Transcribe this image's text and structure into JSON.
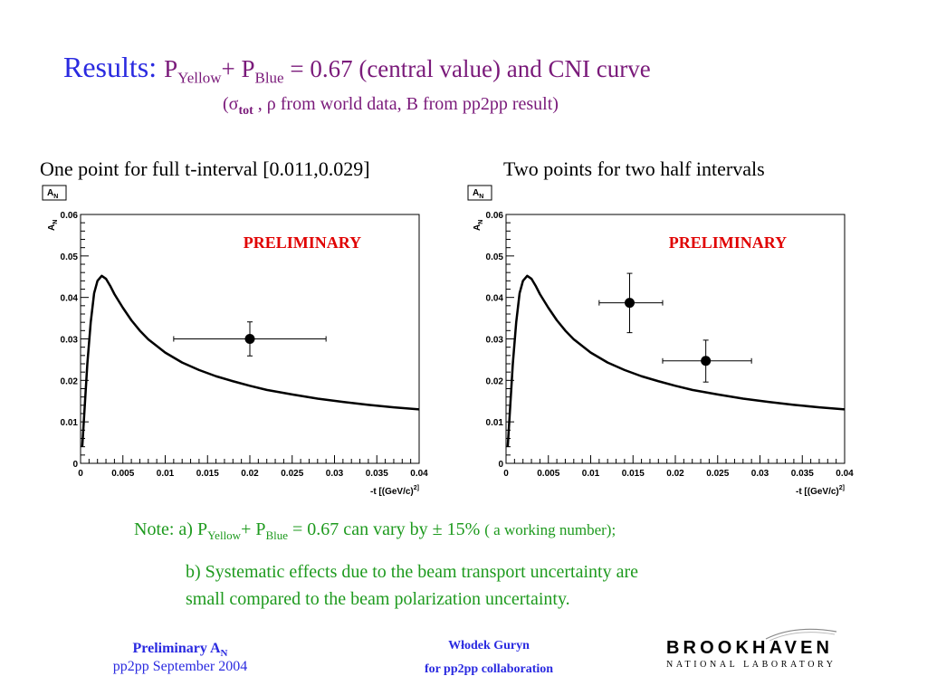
{
  "title": {
    "lead": "Results: ",
    "p1": "P",
    "sub1": "Yellow",
    "plus": "+ P",
    "sub2": "Blue",
    "rest": " = 0.67 (central value) and CNI curve"
  },
  "subtitle": {
    "open": "(",
    "sigma": "σ",
    "sub": "tot",
    "rest": " , ρ from world data, B from pp2pp result)"
  },
  "captions": {
    "left": "One point for full t-interval [0.011,0.029]",
    "right": "Two points for two half   intervals"
  },
  "chart_data": [
    {
      "type": "scatter",
      "stat_box_label": "A_N",
      "ylabel": "A_N",
      "xlabel": "-t [(GeV/c)^2]",
      "annotation": "PRELIMINARY",
      "xlim": [
        0,
        0.04
      ],
      "ylim": [
        0,
        0.06
      ],
      "xticks": [
        "0",
        "0.005",
        "0.01",
        "0.015",
        "0.02",
        "0.025",
        "0.03",
        "0.035",
        "0.04"
      ],
      "yticks": [
        "0",
        "0.01",
        "0.02",
        "0.03",
        "0.04",
        "0.05",
        "0.06"
      ],
      "points": [
        {
          "x": 0.02,
          "y": 0.03,
          "xerr": [
            0.011,
            0.029
          ],
          "yerr": [
            0.0259,
            0.0341
          ]
        }
      ],
      "curve": {
        "name": "CNI curve",
        "x": [
          0.0002,
          0.0005,
          0.0008,
          0.0012,
          0.0016,
          0.002,
          0.0025,
          0.003,
          0.0035,
          0.004,
          0.005,
          0.006,
          0.007,
          0.008,
          0.01,
          0.012,
          0.014,
          0.016,
          0.018,
          0.02,
          0.022,
          0.025,
          0.028,
          0.031,
          0.034,
          0.037,
          0.04
        ],
        "y": [
          0.004,
          0.014,
          0.024,
          0.034,
          0.041,
          0.044,
          0.0452,
          0.0445,
          0.0428,
          0.0408,
          0.0375,
          0.0345,
          0.032,
          0.0299,
          0.0267,
          0.0243,
          0.0225,
          0.021,
          0.0198,
          0.0187,
          0.0177,
          0.0166,
          0.0156,
          0.0148,
          0.0141,
          0.0135,
          0.013
        ]
      }
    },
    {
      "type": "scatter",
      "stat_box_label": "A_N",
      "ylabel": "A_N",
      "xlabel": "-t [(GeV/c)^2]",
      "annotation": "PRELIMINARY",
      "xlim": [
        0,
        0.04
      ],
      "ylim": [
        0,
        0.06
      ],
      "xticks": [
        "0",
        "0.005",
        "0.01",
        "0.015",
        "0.02",
        "0.025",
        "0.03",
        "0.035",
        "0.04"
      ],
      "yticks": [
        "0",
        "0.01",
        "0.02",
        "0.03",
        "0.04",
        "0.05",
        "0.06"
      ],
      "points": [
        {
          "x": 0.0146,
          "y": 0.0387,
          "xerr": [
            0.011,
            0.0185
          ],
          "yerr": [
            0.0315,
            0.0458
          ]
        },
        {
          "x": 0.0236,
          "y": 0.0247,
          "xerr": [
            0.0185,
            0.029
          ],
          "yerr": [
            0.0196,
            0.0297
          ]
        }
      ],
      "curve": {
        "name": "CNI curve",
        "x": [
          0.0002,
          0.0005,
          0.0008,
          0.0012,
          0.0016,
          0.002,
          0.0025,
          0.003,
          0.0035,
          0.004,
          0.005,
          0.006,
          0.007,
          0.008,
          0.01,
          0.012,
          0.014,
          0.016,
          0.018,
          0.02,
          0.022,
          0.025,
          0.028,
          0.031,
          0.034,
          0.037,
          0.04
        ],
        "y": [
          0.004,
          0.014,
          0.024,
          0.034,
          0.041,
          0.044,
          0.0452,
          0.0445,
          0.0428,
          0.0408,
          0.0375,
          0.0345,
          0.032,
          0.0299,
          0.0267,
          0.0243,
          0.0225,
          0.021,
          0.0198,
          0.0187,
          0.0177,
          0.0166,
          0.0156,
          0.0148,
          0.0141,
          0.0135,
          0.013
        ]
      }
    }
  ],
  "notes": {
    "a_prefix": "Note: a) P",
    "a_sub1": "Yellow",
    "a_plus": "+ P",
    "a_sub2": "Blue",
    "a_rest": " = 0.67 can vary by ± 15% ",
    "a_small": "( a working number);",
    "b_line1": "b) Systematic effects due to the beam transport uncertainty are",
    "b_line2": "small compared to the beam polarization uncertainty."
  },
  "footer": {
    "left_line1": "Preliminary A",
    "left_sub": "N",
    "left_line2": "pp2pp September 2004",
    "mid_line1": "Włodek Guryn",
    "mid_line2": "for pp2pp collaboration",
    "logo_line1": "BROOKHAVEN",
    "logo_line2": "NATIONAL LABORATORY"
  },
  "colors": {
    "title_blue": "#2a2ae0",
    "title_purple": "#7a1a7a",
    "preliminary_red": "#e00000",
    "note_green": "#1e9a1e"
  }
}
